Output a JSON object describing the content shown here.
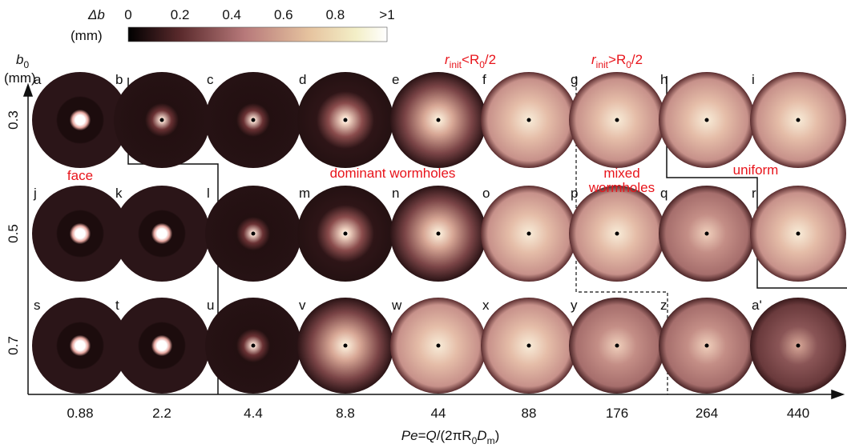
{
  "colorbar": {
    "symbol": "Δb",
    "unit": "(mm)",
    "ticks": [
      "0",
      "0.2",
      "0.4",
      "0.6",
      "0.8",
      ">1"
    ]
  },
  "y_axis": {
    "symbol": "b",
    "subscript": "0",
    "unit": "(mm)"
  },
  "x_axis": {
    "label_parts": [
      "Pe",
      "=",
      "Q",
      "/(2πR",
      "0",
      "D",
      "m",
      ")"
    ]
  },
  "columns": [
    "0.88",
    "2.2",
    "4.4",
    "8.8",
    "44",
    "88",
    "176",
    "264",
    "440"
  ],
  "rows": [
    {
      "label": "0.3",
      "panels": [
        "a",
        "b",
        "c",
        "d",
        "e",
        "f",
        "g",
        "h",
        "i"
      ]
    },
    {
      "label": "0.5",
      "panels": [
        "j",
        "k",
        "l",
        "m",
        "n",
        "o",
        "p",
        "q",
        "r"
      ]
    },
    {
      "label": "0.7",
      "panels": [
        "s",
        "t",
        "u",
        "v",
        "w",
        "x",
        "y",
        "z",
        "a'"
      ]
    }
  ],
  "annotations": {
    "r_small": [
      "r",
      "init",
      "<R",
      "0",
      "/2"
    ],
    "r_large": [
      "r",
      "init",
      ">R",
      "0",
      "/2"
    ],
    "face": "face",
    "dominant": "dominant wormholes",
    "mixed": [
      "mixed",
      "wormholes"
    ],
    "uniform": "uniform"
  }
}
